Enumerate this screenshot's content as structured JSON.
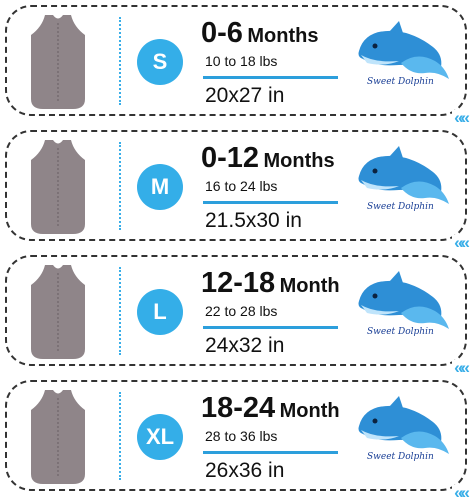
{
  "sizes": [
    {
      "code": "S",
      "age_range": "0-6",
      "age_unit": "Months",
      "weight": "10 to 18 lbs",
      "dimensions": "20x27 in",
      "brand": "Sweet Dolphin"
    },
    {
      "code": "M",
      "age_range": "0-12",
      "age_unit": "Months",
      "weight": "16 to 24 lbs",
      "dimensions": "21.5x30 in",
      "brand": "Sweet Dolphin"
    },
    {
      "code": "L",
      "age_range": "12-18",
      "age_unit": "Month",
      "weight": "22 to 28 lbs",
      "dimensions": "24x32 in",
      "brand": "Sweet Dolphin"
    },
    {
      "code": "XL",
      "age_range": "18-24",
      "age_unit": "Month",
      "weight": "28 to 36 lbs",
      "dimensions": "26x36 in",
      "brand": "Sweet Dolphin"
    }
  ],
  "colors": {
    "accent": "#34aee8",
    "border": "#333333",
    "sack": "#8f8589",
    "brand_text": "#1a3f96"
  },
  "icons": {
    "sack": "sleeping-sack-icon",
    "logo": "dolphin-logo-icon",
    "arrows": "double-chevron-left-icon"
  }
}
